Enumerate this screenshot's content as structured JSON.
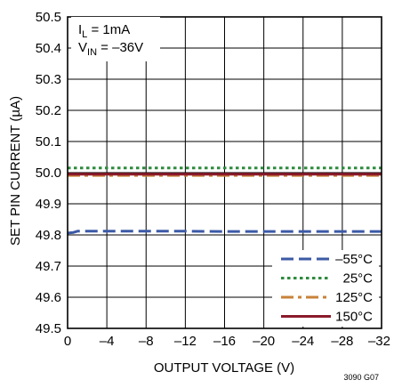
{
  "chart_data": {
    "type": "line",
    "xlabel": "OUTPUT VOLTAGE (V)",
    "ylabel": "SET PIN CURRENT (µA)",
    "xlim": [
      0,
      -32
    ],
    "ylim": [
      49.5,
      50.5
    ],
    "x_ticks": [
      0,
      -4,
      -8,
      -12,
      -16,
      -20,
      -24,
      -28,
      -32
    ],
    "x_tick_labels": [
      "0",
      "–4",
      "–8",
      "–12",
      "–16",
      "–20",
      "–24",
      "–28",
      "–32"
    ],
    "y_ticks": [
      49.5,
      49.6,
      49.7,
      49.8,
      49.9,
      50.0,
      50.1,
      50.2,
      50.3,
      50.4,
      50.5
    ],
    "y_tick_labels": [
      "49.5",
      "49.6",
      "49.7",
      "49.8",
      "49.9",
      "50.0",
      "50.1",
      "50.2",
      "50.3",
      "50.4",
      "50.5"
    ],
    "grid": true,
    "legend_position": "bottom-right",
    "annotations": {
      "il_main": "I",
      "il_sub": "L",
      "il_rest": " = 1mA",
      "vin_main": "V",
      "vin_sub": "IN",
      "vin_rest": " = –36V"
    },
    "figure_id": "3090 G07",
    "series": [
      {
        "name": "–55°C",
        "color": "#3c5aa6",
        "dash": "long-dash",
        "x": [
          0,
          -0.6,
          -1.0,
          -4,
          -8,
          -12,
          -16,
          -20,
          -24,
          -28,
          -32
        ],
        "y": [
          49.806,
          49.808,
          49.812,
          49.812,
          49.812,
          49.812,
          49.811,
          49.811,
          49.811,
          49.811,
          49.811
        ]
      },
      {
        "name": "25°C",
        "color": "#2e8b3e",
        "dash": "dotted",
        "x": [
          0,
          -4,
          -8,
          -12,
          -16,
          -20,
          -24,
          -28,
          -32
        ],
        "y": [
          50.015,
          50.015,
          50.015,
          50.015,
          50.015,
          50.015,
          50.015,
          50.015,
          50.015
        ]
      },
      {
        "name": "125°C",
        "color": "#c8823a",
        "dash": "dash-dot",
        "x": [
          0,
          -4,
          -8,
          -12,
          -16,
          -20,
          -24,
          -28,
          -32
        ],
        "y": [
          49.991,
          49.991,
          49.991,
          49.991,
          49.991,
          49.991,
          49.991,
          49.991,
          49.991
        ]
      },
      {
        "name": "150°C",
        "color": "#8b1a2b",
        "dash": "solid",
        "x": [
          0,
          -4,
          -8,
          -12,
          -16,
          -20,
          -24,
          -28,
          -32
        ],
        "y": [
          49.995,
          49.995,
          49.995,
          49.995,
          49.995,
          49.995,
          49.995,
          49.995,
          49.995
        ]
      }
    ]
  }
}
